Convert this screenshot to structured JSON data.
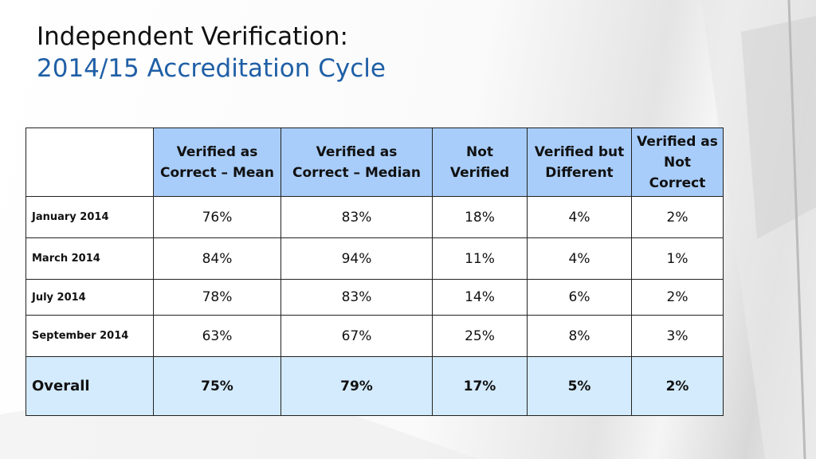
{
  "header": {
    "title": "Independent Verification:",
    "subtitle": "2014/15 Accreditation Cycle"
  },
  "table": {
    "columns": [
      "Verified as Correct – Mean",
      "Verified as Correct – Median",
      "Not Verified",
      "Verified but Different",
      "Verified as Not Correct"
    ],
    "rows": [
      [
        "January 2014",
        "76%",
        "83%",
        "18%",
        "4%",
        "2%"
      ],
      [
        "March 2014",
        "84%",
        "94%",
        "11%",
        "4%",
        "1%"
      ],
      [
        "July 2014",
        "78%",
        "83%",
        "14%",
        "6%",
        "2%"
      ],
      [
        "September 2014",
        "63%",
        "67%",
        "25%",
        "8%",
        "3%"
      ]
    ],
    "total": [
      "Overall",
      "75%",
      "79%",
      "17%",
      "5%",
      "2%"
    ]
  }
}
